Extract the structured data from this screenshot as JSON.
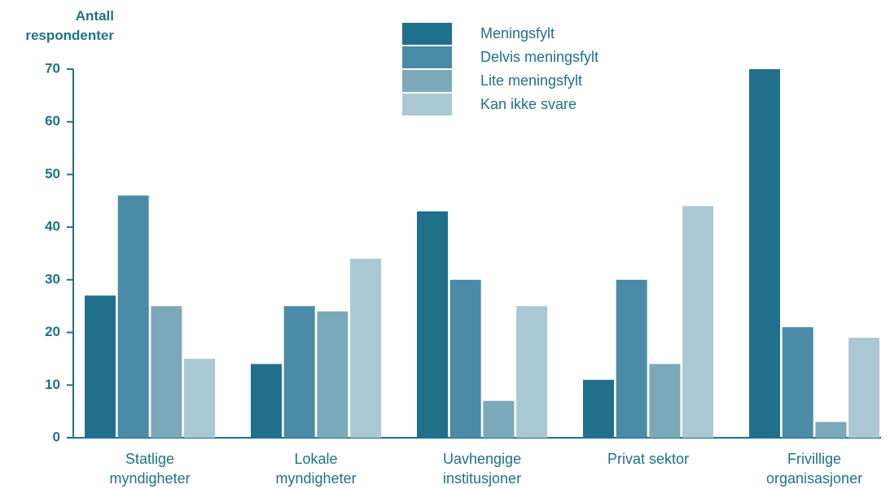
{
  "chart_data": {
    "type": "bar",
    "y_label": "Antall respondenter",
    "categories": [
      "Statlige myndigheter",
      "Lokale myndigheter",
      "Uavhengige institusjoner",
      "Privat sektor",
      "Frivillige organisasjoner"
    ],
    "series": [
      {
        "name": "Meningsfylt",
        "color": "#20708b",
        "values": [
          27,
          14,
          43,
          11,
          70
        ]
      },
      {
        "name": "Delvis meningsfylt",
        "color": "#4a8ca7",
        "values": [
          46,
          25,
          30,
          30,
          21
        ]
      },
      {
        "name": "Lite meningsfylt",
        "color": "#7ba9b9",
        "values": [
          25,
          24,
          7,
          14,
          3
        ]
      },
      {
        "name": "Kan ikke svare",
        "color": "#a9c8d3",
        "values": [
          15,
          34,
          25,
          44,
          19
        ]
      }
    ],
    "ylim": [
      0,
      70
    ],
    "yticks": [
      0,
      10,
      20,
      30,
      40,
      50,
      60,
      70
    ],
    "legend": "top-center"
  }
}
